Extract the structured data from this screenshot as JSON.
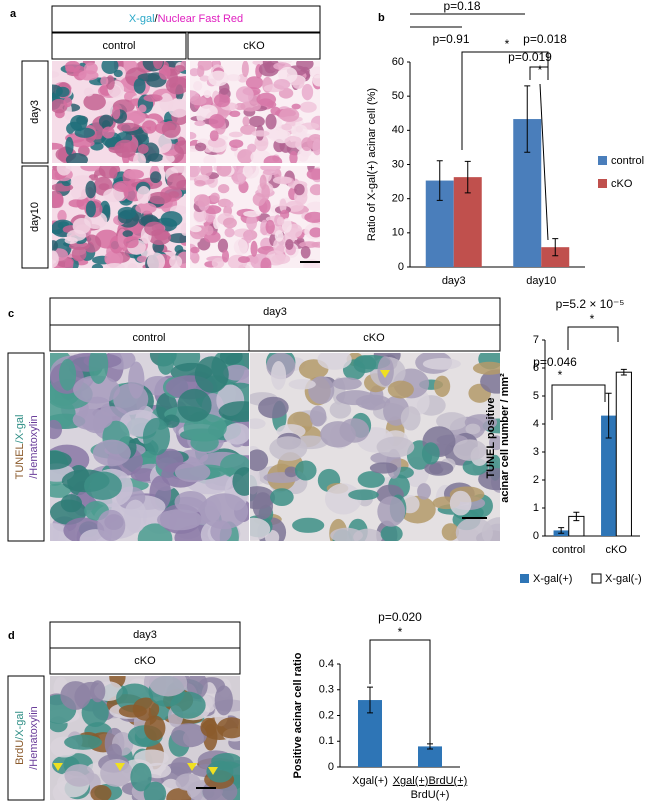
{
  "panel_a": {
    "letter": "a",
    "stain": [
      "X-gal",
      "/",
      "Nuclear Fast Red"
    ],
    "columns": [
      "control",
      "cKO"
    ],
    "rows": [
      "day3",
      "day10"
    ]
  },
  "panel_c": {
    "letter": "c",
    "header": "day3",
    "columns": [
      "control",
      "cKO"
    ],
    "side_label": [
      [
        "TUNEL",
        "/X-gal"
      ],
      [
        "/Hematoxylin"
      ]
    ]
  },
  "panel_d": {
    "letter": "d",
    "header": "day3",
    "column": "cKO",
    "side_label": [
      [
        "BrdU",
        "/X-gal"
      ],
      [
        "/Hematoxylin"
      ]
    ]
  },
  "chart_data": [
    {
      "type": "bar",
      "letter": "b",
      "ylabel": [
        "Ratio of X-gal(+) acinar cell (%)"
      ],
      "categories": [
        "day3",
        "day10"
      ],
      "series": [
        {
          "name": "control",
          "color": "#4a7ebb",
          "values": [
            25.3,
            43.3
          ],
          "errors": [
            5.8,
            9.7
          ]
        },
        {
          "name": "cKO",
          "color": "#c0504d",
          "values": [
            26.3,
            5.8
          ],
          "errors": [
            4.6,
            2.5
          ]
        }
      ],
      "ylim": [
        0,
        60
      ],
      "yticks": [
        0,
        10,
        20,
        30,
        40,
        50,
        60
      ],
      "legend": "right",
      "annotations": [
        "p=0.18",
        "p=0.91",
        "*",
        "p=0.018",
        "p=0.019",
        "*"
      ]
    },
    {
      "type": "bar",
      "ylabel": [
        "TUNEL positive",
        "acinar cell number / mm²"
      ],
      "categories": [
        "control",
        "cKO"
      ],
      "series": [
        {
          "name": "X-gal(+)",
          "color": "#2e75b6",
          "values": [
            0.2,
            4.3
          ],
          "errors": [
            0.1,
            0.8
          ]
        },
        {
          "name": "X-gal(-)",
          "color": "#ffffff",
          "values": [
            0.7,
            5.85
          ],
          "errors": [
            0.15,
            0.1
          ]
        }
      ],
      "ylim": [
        0,
        7
      ],
      "yticks": [
        0,
        1,
        2,
        3,
        4,
        5,
        6,
        7
      ],
      "legend": "bottom",
      "annotations": [
        "p=5.2 × 10⁻⁵",
        "*",
        "p=0.046",
        "*"
      ]
    },
    {
      "type": "bar",
      "ylabel": [
        "Positive acinar cell ratio"
      ],
      "categories": [
        [
          "Xgal(+)"
        ],
        [
          "Xgal(+)BrdU(+)",
          "BrdU(+)"
        ]
      ],
      "series": [
        {
          "color": "#2e75b6",
          "values": [
            0.26,
            0.08
          ],
          "errors": [
            0.05,
            0.01
          ]
        }
      ],
      "ylim": [
        0,
        0.4
      ],
      "yticks": [
        0,
        0.1,
        0.2,
        0.3,
        0.4
      ],
      "annotations": [
        "p=0.020",
        "*"
      ]
    }
  ]
}
